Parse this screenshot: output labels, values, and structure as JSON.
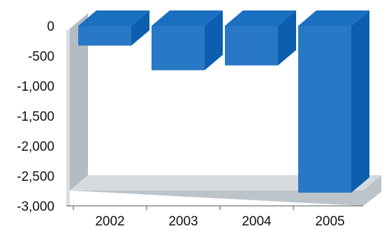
{
  "chart_data": {
    "type": "bar",
    "categories": [
      "2002",
      "2003",
      "2004",
      "2005"
    ],
    "values": [
      -330,
      -740,
      -660,
      -2780
    ],
    "ylim": [
      -3000,
      0
    ],
    "yticks": [
      0,
      -500,
      -1000,
      -1500,
      -2000,
      -2500,
      -3000
    ],
    "ytick_labels": [
      "0",
      "-500",
      "-1,000",
      "-1,500",
      "-2,000",
      "-2,500",
      "-3,000"
    ],
    "grid": false,
    "legend": "none",
    "three_d": true
  },
  "colors": {
    "bar_front": "#2978c5",
    "bar_side": "#0b5fae",
    "bar_top": "#1a6fc0",
    "wall_left": "#b4bcc3",
    "wall_left_edge": "#d8dde1",
    "floor": "#d6dade",
    "floor_edge": "#bcc3c9",
    "axis": "#555555"
  }
}
